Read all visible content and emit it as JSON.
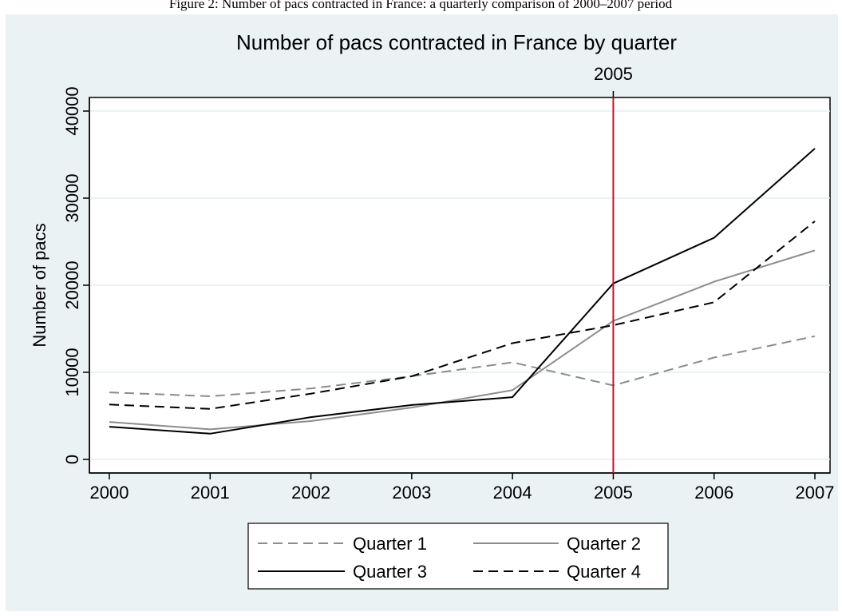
{
  "caption": "Figure 2: Number of pacs contracted in France: a quarterly comparison of 2000–2007 period",
  "chart_data": {
    "type": "line",
    "title": "Number of pacs contracted in France by quarter",
    "xlabel": "",
    "ylabel": "Number of pacs",
    "x": [
      2000,
      2001,
      2002,
      2003,
      2004,
      2005,
      2006,
      2007
    ],
    "x_tick_labels": [
      "2000",
      "2001",
      "2002",
      "2003",
      "2004",
      "2005",
      "2006",
      "2007"
    ],
    "y_tick_values": [
      0,
      10000,
      20000,
      30000,
      40000
    ],
    "y_tick_labels": [
      "0",
      "10000",
      "20000",
      "30000",
      "40000"
    ],
    "xlim": [
      2000,
      2007
    ],
    "ylim": [
      -1500,
      41500
    ],
    "grid": "horizontal",
    "reference_line": {
      "x": 2005,
      "label": "2005",
      "color": "#c8102e"
    },
    "legend": {
      "placement": "bottom",
      "columns": 2
    },
    "background_color": "#eaf2f3",
    "plot_background_color": "#ffffff",
    "series": [
      {
        "name": "Quarter 1",
        "color": "#8c8c8c",
        "style": "dashed",
        "values": [
          7700,
          7250,
          8150,
          9550,
          11150,
          8500,
          11700,
          14150
        ]
      },
      {
        "name": "Quarter 2",
        "color": "#8c8c8c",
        "style": "solid",
        "values": [
          4300,
          3450,
          4400,
          5950,
          7950,
          15900,
          20400,
          24000
        ]
      },
      {
        "name": "Quarter 3",
        "color": "#000000",
        "style": "solid",
        "values": [
          3750,
          2950,
          4850,
          6250,
          7150,
          20200,
          25450,
          35700
        ]
      },
      {
        "name": "Quarter 4",
        "color": "#000000",
        "style": "dashed",
        "values": [
          6300,
          5800,
          7550,
          9550,
          13350,
          15400,
          18050,
          27350
        ]
      }
    ]
  }
}
